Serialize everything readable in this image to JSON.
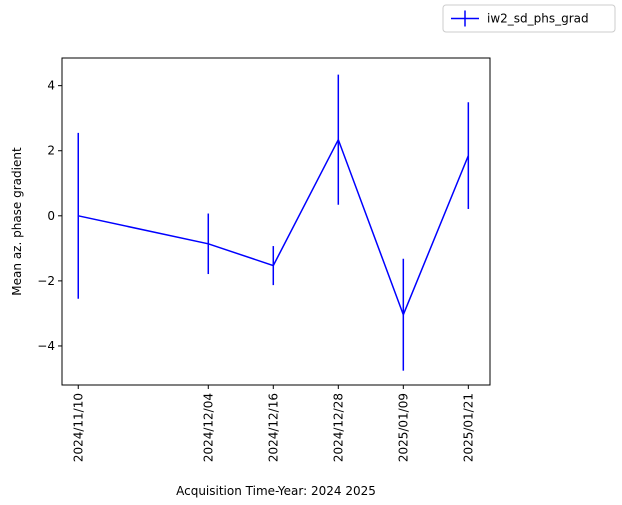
{
  "chart_data": {
    "type": "line",
    "title": "",
    "xlabel": "Acquisition Time-Year: 2024 2025",
    "ylabel": "Mean az. phase gradient",
    "x": [
      "2024/11/10",
      "2024/12/04",
      "2024/12/16",
      "2024/12/28",
      "2025/01/09",
      "2025/01/21"
    ],
    "xlim": [
      "2024/11/07",
      "2025/01/25"
    ],
    "ylim": [
      -5.2,
      4.85
    ],
    "yticks": [
      -4,
      -2,
      0,
      2,
      4
    ],
    "grid": false,
    "legend": "top-right",
    "series": [
      {
        "name": "iw2_sd_phs_grad",
        "color": "#0000ff",
        "values": [
          0.0,
          -0.86,
          -1.53,
          2.34,
          -3.04,
          1.85
        ],
        "error": [
          2.55,
          0.93,
          0.6,
          2.0,
          1.72,
          1.64
        ]
      }
    ]
  }
}
